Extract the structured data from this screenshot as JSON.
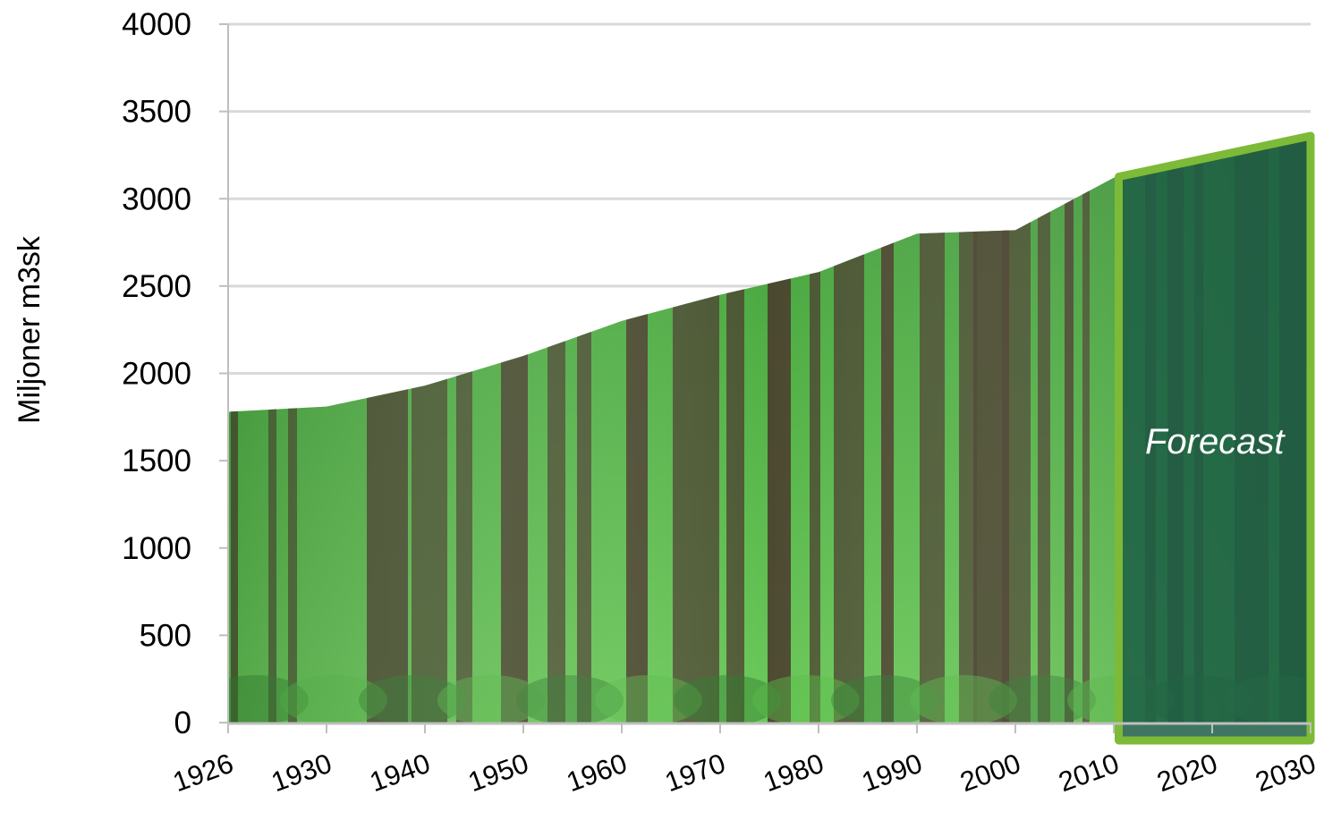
{
  "chart_data": {
    "type": "area",
    "title": "",
    "xlabel": "",
    "ylabel": "Miljoner m3sk",
    "x": [
      1926,
      1930,
      1940,
      1950,
      1960,
      1970,
      1980,
      1990,
      2000,
      2010,
      2020,
      2030
    ],
    "x_tick_labels": [
      "1926",
      "1930",
      "1940",
      "1950",
      "1960",
      "1970",
      "1980",
      "1990",
      "2000",
      "2010",
      "2020",
      "2030"
    ],
    "series": [
      {
        "values": [
          1780,
          1810,
          1930,
          2100,
          2300,
          2450,
          2580,
          2800,
          2820,
          3120,
          3240,
          3360
        ]
      }
    ],
    "forecast": {
      "label": "Forecast",
      "x_start": 2010.5,
      "x_end": 2030
    },
    "ylim": [
      0,
      4000
    ],
    "y_ticks": [
      0,
      500,
      1000,
      1500,
      2000,
      2500,
      3000,
      3500,
      4000
    ],
    "grid": true,
    "legend": "none",
    "colors": {
      "gridline": "#d9d9d9",
      "axis": "#bfbfbf",
      "forest_light": "#58bd48",
      "forest_dark": "#2f7a2c",
      "trunk": "#4a3a2c",
      "forecast_fill": "#1c5e45",
      "forecast_border": "#7dba37"
    }
  }
}
